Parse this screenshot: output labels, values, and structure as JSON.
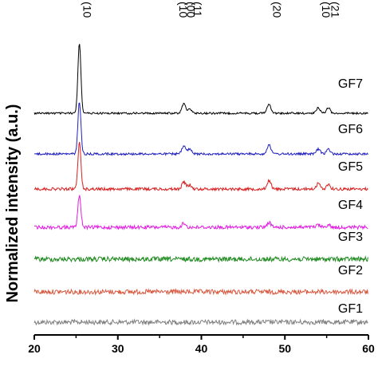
{
  "chart_data": {
    "type": "line",
    "title": "",
    "xlabel": "",
    "ylabel": "Normalized intensity (a.u.)",
    "xlim": [
      20,
      60
    ],
    "x_ticks": [
      "20",
      "30",
      "40",
      "50",
      "60"
    ],
    "grid": false,
    "legend": "none",
    "peak_labels": [
      {
        "text": "(10",
        "x": 25.4
      },
      {
        "text": "(10",
        "x": 36.9
      },
      {
        "text": "(00",
        "x": 37.8
      },
      {
        "text": "(11",
        "x": 38.6
      },
      {
        "text": "(20",
        "x": 48.1
      },
      {
        "text": "(10",
        "x": 54.0
      },
      {
        "text": "(21",
        "x": 55.1
      }
    ],
    "series": [
      {
        "name": "GF1",
        "color": "#808080",
        "noise": 3.0,
        "peaks": []
      },
      {
        "name": "GF2",
        "color": "#d9573f",
        "noise": 3.0,
        "peaks": []
      },
      {
        "name": "GF3",
        "color": "#1f8a1f",
        "noise": 3.0,
        "peaks": []
      },
      {
        "name": "GF4",
        "color": "#e21ee2",
        "noise": 2.2,
        "peaks": [
          {
            "x": 25.4,
            "h": 40
          },
          {
            "x": 37.9,
            "h": 5
          },
          {
            "x": 48.1,
            "h": 6
          },
          {
            "x": 54.0,
            "h": 3
          },
          {
            "x": 55.2,
            "h": 3
          }
        ]
      },
      {
        "name": "GF5",
        "color": "#d81f1f",
        "noise": 1.8,
        "peaks": [
          {
            "x": 25.4,
            "h": 58
          },
          {
            "x": 37.9,
            "h": 9
          },
          {
            "x": 38.6,
            "h": 5
          },
          {
            "x": 48.1,
            "h": 11
          },
          {
            "x": 54.0,
            "h": 7
          },
          {
            "x": 55.2,
            "h": 6
          }
        ]
      },
      {
        "name": "GF6",
        "color": "#1f1fbf",
        "noise": 1.4,
        "peaks": [
          {
            "x": 25.4,
            "h": 65
          },
          {
            "x": 37.9,
            "h": 10
          },
          {
            "x": 38.6,
            "h": 6
          },
          {
            "x": 48.1,
            "h": 12
          },
          {
            "x": 54.0,
            "h": 6
          },
          {
            "x": 55.2,
            "h": 6
          }
        ]
      },
      {
        "name": "GF7",
        "color": "#000000",
        "noise": 1.2,
        "peaks": [
          {
            "x": 25.4,
            "h": 88
          },
          {
            "x": 37.9,
            "h": 12
          },
          {
            "x": 38.6,
            "h": 6
          },
          {
            "x": 48.1,
            "h": 12
          },
          {
            "x": 54.0,
            "h": 7
          },
          {
            "x": 55.2,
            "h": 7
          }
        ]
      }
    ]
  }
}
